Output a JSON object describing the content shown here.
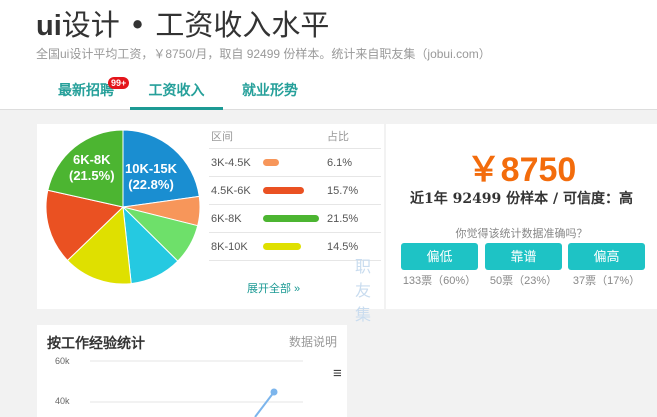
{
  "header": {
    "title_latin": "ui",
    "title_rest": "设计 • 工资收入水平",
    "subtitle": "全国ui设计平均工资，￥8750/月，取自 92499 份样本。统计来自职友集（jobui.com）"
  },
  "tabs": [
    {
      "label": "最新招聘",
      "badge": "99+"
    },
    {
      "label": "工资收入",
      "active": true
    },
    {
      "label": "就业形势"
    }
  ],
  "distribution": {
    "pie_labels": [
      {
        "range": "10K-15K",
        "pct": "(22.8%)"
      },
      {
        "range": "6K-8K",
        "pct": "(21.5%)"
      }
    ],
    "slices": [
      {
        "range": "10K-15K",
        "value": 22.8,
        "color": "#1a8ed1"
      },
      {
        "range": "3K-4.5K",
        "value": 6.1,
        "color": "#f7965a"
      },
      {
        "range": "",
        "value": 8.5,
        "color": "#6ee06a"
      },
      {
        "range": "",
        "value": 10.9,
        "color": "#25c9e1"
      },
      {
        "range": "8K-10K",
        "value": 14.5,
        "color": "#dfe000"
      },
      {
        "range": "4.5K-6K",
        "value": 15.7,
        "color": "#ea5122"
      },
      {
        "range": "6K-8K",
        "value": 21.5,
        "color": "#4cb531"
      }
    ],
    "head_range": "区间",
    "head_pct": "占比",
    "rows": [
      {
        "range": "3K-4.5K",
        "pct": "6.1%",
        "value": 6.1,
        "color": "#f7965a"
      },
      {
        "range": "4.5K-6K",
        "pct": "15.7%",
        "value": 15.7,
        "color": "#ea5122"
      },
      {
        "range": "6K-8K",
        "pct": "21.5%",
        "value": 21.5,
        "color": "#4cb531"
      },
      {
        "range": "8K-10K",
        "pct": "14.5%",
        "value": 14.5,
        "color": "#dfe000"
      }
    ],
    "expand": "展开全部 »",
    "watermark": "职友集"
  },
  "summary": {
    "price": "￥8750",
    "samples": "近1年 92499 份样本 / 可信度：高",
    "question": "你觉得该统计数据准确吗？",
    "votes": [
      {
        "label": "偏低",
        "count": "133票（60%）"
      },
      {
        "label": "靠谱",
        "count": "50票（23%）"
      },
      {
        "label": "偏高",
        "count": "37票（17%）"
      }
    ]
  },
  "experience": {
    "title": "按工作经验统计",
    "link": "数据说明",
    "y_ticks": [
      "60k",
      "40k"
    ]
  }
}
